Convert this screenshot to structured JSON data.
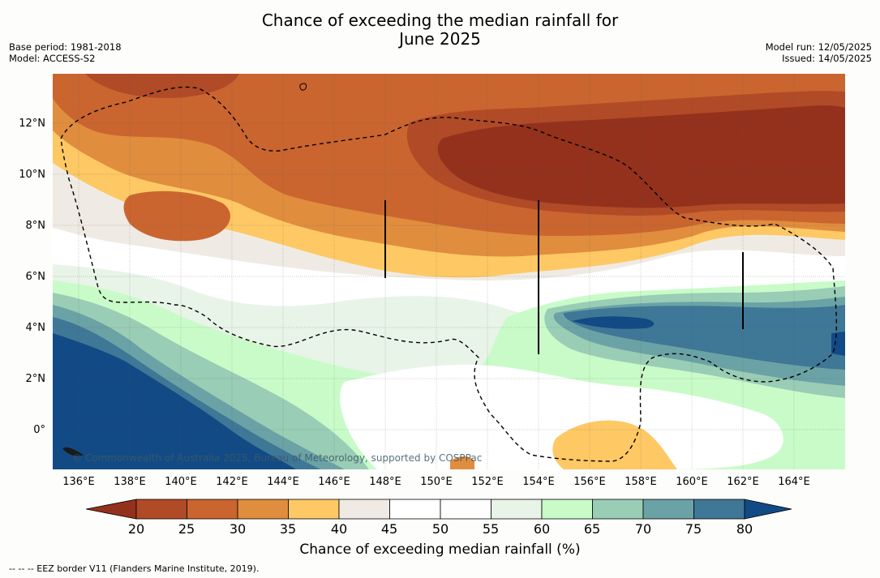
{
  "title": {
    "line1": "Chance of exceeding the median rainfall for",
    "line2": "June 2025"
  },
  "meta_left": {
    "base_period": "Base period: 1981-2018",
    "model": "Model: ACCESS-S2"
  },
  "meta_right": {
    "model_run": "Model run: 12/05/2025",
    "issued": "Issued: 14/05/2025"
  },
  "map": {
    "lat_labels": [
      "12°N",
      "10°N",
      "8°N",
      "6°N",
      "4°N",
      "2°N",
      "0°"
    ],
    "lon_labels": [
      "136°E",
      "138°E",
      "140°E",
      "142°E",
      "144°E",
      "146°E",
      "148°E",
      "150°E",
      "152°E",
      "154°E",
      "156°E",
      "158°E",
      "160°E",
      "162°E",
      "164°E"
    ],
    "copyright": "© Commonwealth of Australia 2025, Bureau of Meteorology, supported by COSPPac",
    "border_line_style": "dashed"
  },
  "colorbar": {
    "ticks": [
      "20",
      "25",
      "30",
      "35",
      "40",
      "45",
      "50",
      "55",
      "60",
      "65",
      "70",
      "75",
      "80"
    ],
    "colors": [
      "#93311d",
      "#b14a26",
      "#ca6530",
      "#e08d3e",
      "#fec864",
      "#efebe4",
      "#ffffff",
      "#fdfefd",
      "#e8f4e8",
      "#c9fbc9",
      "#9acdb5",
      "#6ba2a6",
      "#3f7796",
      "#124a85"
    ],
    "label": "Chance of exceeding median rainfall (%)"
  },
  "footnote": "--  --  -- EEZ border V11 (Flanders Marine Institute, 2019)."
}
